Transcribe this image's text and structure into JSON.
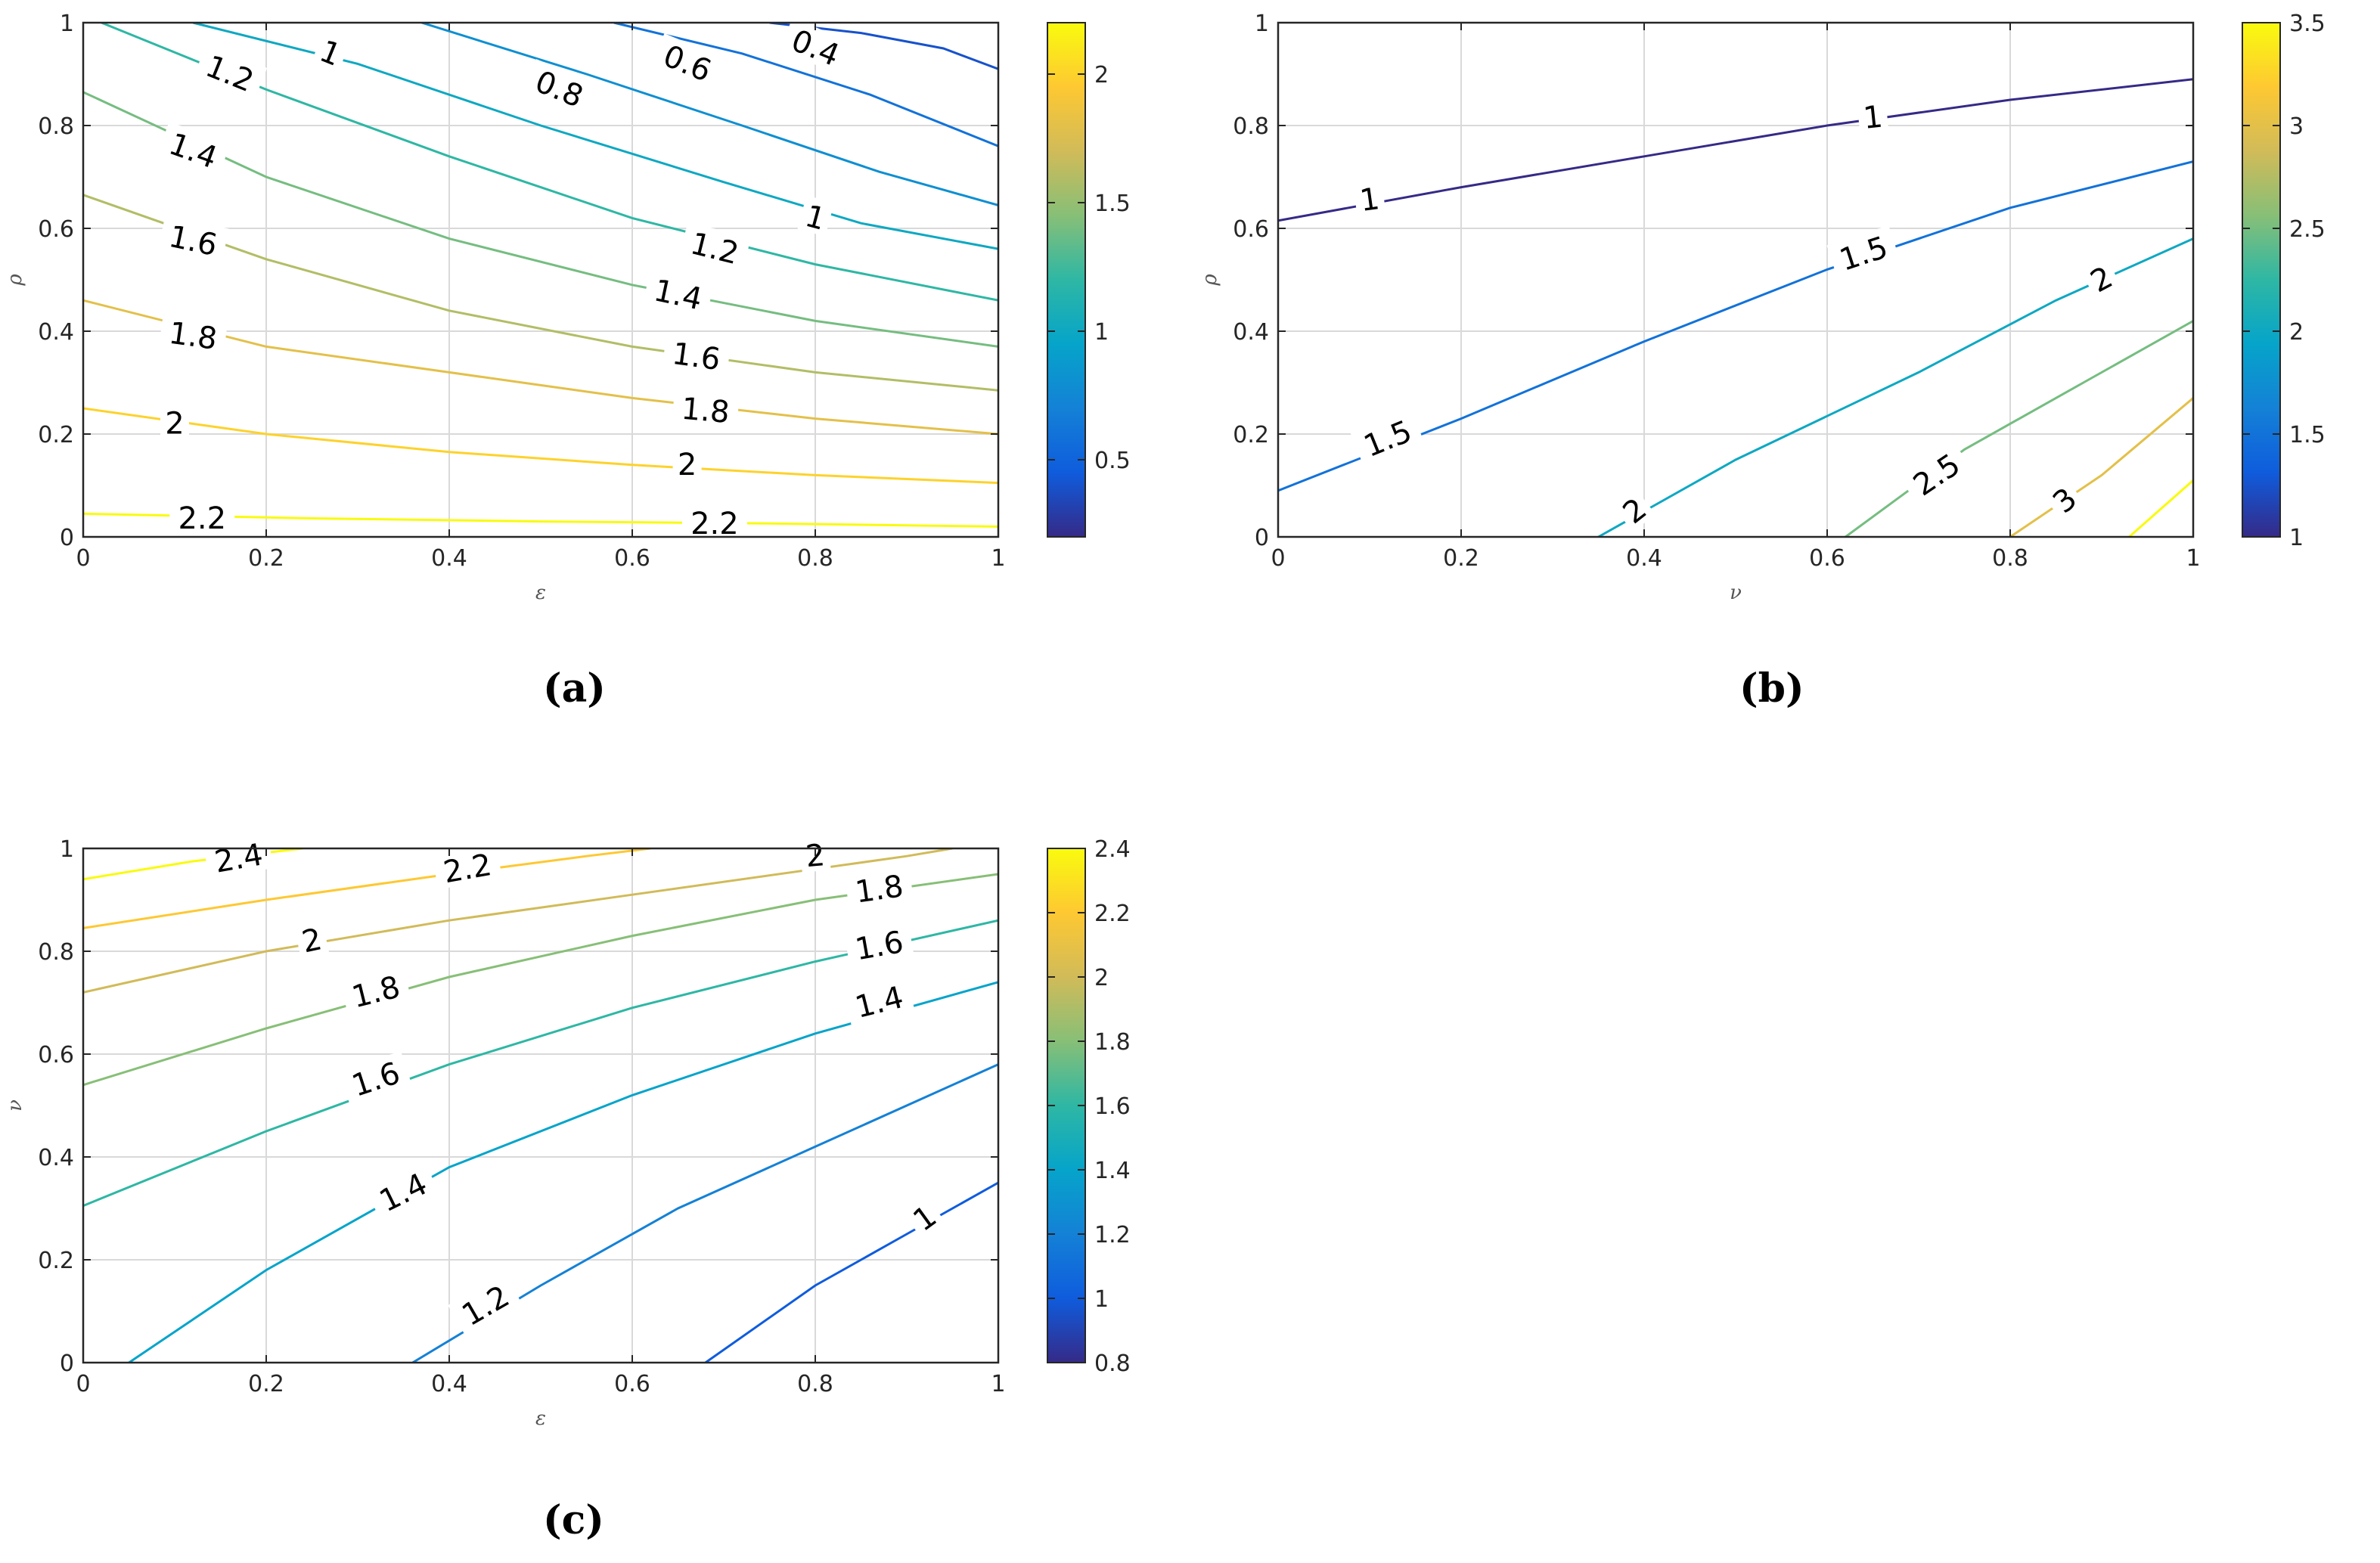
{
  "captions": {
    "a": "(a)",
    "b": "(b)",
    "c": "(c)"
  },
  "chart_data": [
    {
      "id": "a",
      "type": "contour",
      "title": "",
      "xlabel": "ε",
      "ylabel": "ρ",
      "xlim": [
        0,
        1
      ],
      "ylim": [
        0,
        1
      ],
      "xticks": [
        0,
        0.2,
        0.4,
        0.6,
        0.8,
        1
      ],
      "yticks": [
        0,
        0.2,
        0.4,
        0.6,
        0.8,
        1
      ],
      "grid": true,
      "colorbar": {
        "min": 0.2,
        "max": 2.2,
        "ticks": [
          0.5,
          1,
          1.5,
          2
        ]
      },
      "contours": [
        {
          "level": 2.2,
          "points": [
            [
              0,
              0.045
            ],
            [
              0.25,
              0.036
            ],
            [
              0.5,
              0.03
            ],
            [
              0.75,
              0.026
            ],
            [
              1,
              0.02
            ]
          ]
        },
        {
          "level": 2.0,
          "points": [
            [
              0,
              0.25
            ],
            [
              0.2,
              0.2
            ],
            [
              0.4,
              0.165
            ],
            [
              0.6,
              0.14
            ],
            [
              0.8,
              0.12
            ],
            [
              1,
              0.105
            ]
          ]
        },
        {
          "level": 1.8,
          "points": [
            [
              0,
              0.46
            ],
            [
              0.2,
              0.37
            ],
            [
              0.4,
              0.32
            ],
            [
              0.6,
              0.27
            ],
            [
              0.8,
              0.23
            ],
            [
              1,
              0.2
            ]
          ]
        },
        {
          "level": 1.6,
          "points": [
            [
              0,
              0.665
            ],
            [
              0.2,
              0.54
            ],
            [
              0.4,
              0.44
            ],
            [
              0.6,
              0.37
            ],
            [
              0.8,
              0.32
            ],
            [
              1,
              0.285
            ]
          ]
        },
        {
          "level": 1.4,
          "points": [
            [
              0,
              0.865
            ],
            [
              0.2,
              0.7
            ],
            [
              0.4,
              0.58
            ],
            [
              0.6,
              0.49
            ],
            [
              0.8,
              0.42
            ],
            [
              1,
              0.37
            ]
          ]
        },
        {
          "level": 1.2,
          "points": [
            [
              0.02,
              1
            ],
            [
              0.2,
              0.87
            ],
            [
              0.4,
              0.74
            ],
            [
              0.6,
              0.62
            ],
            [
              0.8,
              0.53
            ],
            [
              1,
              0.46
            ]
          ]
        },
        {
          "level": 1.0,
          "points": [
            [
              0.12,
              1
            ],
            [
              0.3,
              0.92
            ],
            [
              0.5,
              0.8
            ],
            [
              0.7,
              0.69
            ],
            [
              0.85,
              0.61
            ],
            [
              1,
              0.56
            ]
          ]
        },
        {
          "level": 0.8,
          "points": [
            [
              0.37,
              1
            ],
            [
              0.55,
              0.9
            ],
            [
              0.72,
              0.8
            ],
            [
              0.87,
              0.71
            ],
            [
              1,
              0.645
            ]
          ]
        },
        {
          "level": 0.6,
          "points": [
            [
              0.58,
              1
            ],
            [
              0.72,
              0.94
            ],
            [
              0.86,
              0.86
            ],
            [
              1,
              0.76
            ]
          ]
        },
        {
          "level": 0.4,
          "points": [
            [
              0.75,
              1
            ],
            [
              0.85,
              0.98
            ],
            [
              0.94,
              0.95
            ],
            [
              1,
              0.91
            ]
          ]
        }
      ],
      "labels": [
        {
          "text": "2.2",
          "x": 0.13,
          "y": 0.035,
          "angle": 0
        },
        {
          "text": "2.2",
          "x": 0.69,
          "y": 0.025,
          "angle": 0
        },
        {
          "text": "2",
          "x": 0.1,
          "y": 0.22,
          "angle": 0
        },
        {
          "text": "2",
          "x": 0.66,
          "y": 0.14,
          "angle": 0
        },
        {
          "text": "1.8",
          "x": 0.12,
          "y": 0.39,
          "angle": 8
        },
        {
          "text": "1.8",
          "x": 0.68,
          "y": 0.245,
          "angle": 5
        },
        {
          "text": "1.6",
          "x": 0.12,
          "y": 0.575,
          "angle": 12
        },
        {
          "text": "1.6",
          "x": 0.67,
          "y": 0.35,
          "angle": 8
        },
        {
          "text": "1.4",
          "x": 0.12,
          "y": 0.75,
          "angle": 20
        },
        {
          "text": "1.4",
          "x": 0.65,
          "y": 0.47,
          "angle": 12
        },
        {
          "text": "1.2",
          "x": 0.16,
          "y": 0.9,
          "angle": 22
        },
        {
          "text": "1.2",
          "x": 0.69,
          "y": 0.56,
          "angle": 14
        },
        {
          "text": "1",
          "x": 0.27,
          "y": 0.94,
          "angle": 22
        },
        {
          "text": "1",
          "x": 0.8,
          "y": 0.62,
          "angle": 15
        },
        {
          "text": "0.8",
          "x": 0.52,
          "y": 0.87,
          "angle": 22
        },
        {
          "text": "0.6",
          "x": 0.66,
          "y": 0.92,
          "angle": 22
        },
        {
          "text": "0.4",
          "x": 0.8,
          "y": 0.95,
          "angle": 22
        }
      ]
    },
    {
      "id": "b",
      "type": "contour",
      "title": "",
      "xlabel": "ν",
      "ylabel": "ρ",
      "xlim": [
        0,
        1
      ],
      "ylim": [
        0,
        1
      ],
      "xticks": [
        0,
        0.2,
        0.4,
        0.6,
        0.8,
        1
      ],
      "yticks": [
        0,
        0.2,
        0.4,
        0.6,
        0.8,
        1
      ],
      "grid": true,
      "colorbar": {
        "min": 1,
        "max": 3.5,
        "ticks": [
          1,
          1.5,
          2,
          2.5,
          3,
          3.5
        ]
      },
      "contours": [
        {
          "level": 1.0,
          "points": [
            [
              0,
              0.615
            ],
            [
              0.2,
              0.68
            ],
            [
              0.4,
              0.74
            ],
            [
              0.6,
              0.8
            ],
            [
              0.8,
              0.85
            ],
            [
              1,
              0.89
            ]
          ]
        },
        {
          "level": 1.5,
          "points": [
            [
              0,
              0.09
            ],
            [
              0.2,
              0.23
            ],
            [
              0.4,
              0.38
            ],
            [
              0.6,
              0.52
            ],
            [
              0.8,
              0.64
            ],
            [
              1,
              0.73
            ]
          ]
        },
        {
          "level": 2.0,
          "points": [
            [
              0.35,
              0
            ],
            [
              0.5,
              0.15
            ],
            [
              0.7,
              0.32
            ],
            [
              0.85,
              0.46
            ],
            [
              1,
              0.58
            ]
          ]
        },
        {
          "level": 2.5,
          "points": [
            [
              0.62,
              0
            ],
            [
              0.75,
              0.17
            ],
            [
              0.88,
              0.3
            ],
            [
              1,
              0.42
            ]
          ]
        },
        {
          "level": 3.0,
          "points": [
            [
              0.8,
              0
            ],
            [
              0.9,
              0.12
            ],
            [
              1,
              0.27
            ]
          ]
        },
        {
          "level": 3.5,
          "points": [
            [
              0.93,
              0
            ],
            [
              1,
              0.11
            ]
          ]
        }
      ],
      "labels": [
        {
          "text": "1",
          "x": 0.1,
          "y": 0.655,
          "angle": -8
        },
        {
          "text": "1",
          "x": 0.65,
          "y": 0.815,
          "angle": -6
        },
        {
          "text": "1.5",
          "x": 0.12,
          "y": 0.19,
          "angle": -22
        },
        {
          "text": "1.5",
          "x": 0.64,
          "y": 0.55,
          "angle": -18
        },
        {
          "text": "2",
          "x": 0.39,
          "y": 0.05,
          "angle": -38
        },
        {
          "text": "2",
          "x": 0.9,
          "y": 0.5,
          "angle": -28
        },
        {
          "text": "2.5",
          "x": 0.72,
          "y": 0.12,
          "angle": -34
        },
        {
          "text": "3",
          "x": 0.86,
          "y": 0.07,
          "angle": -40
        }
      ]
    },
    {
      "id": "c",
      "type": "contour",
      "title": "",
      "xlabel": "ε",
      "ylabel": "ν",
      "xlim": [
        0,
        1
      ],
      "ylim": [
        0,
        1
      ],
      "xticks": [
        0,
        0.2,
        0.4,
        0.6,
        0.8,
        1
      ],
      "yticks": [
        0,
        0.2,
        0.4,
        0.6,
        0.8,
        1
      ],
      "grid": true,
      "colorbar": {
        "min": 0.8,
        "max": 2.4,
        "ticks": [
          0.8,
          1,
          1.2,
          1.4,
          1.6,
          1.8,
          2,
          2.2,
          2.4
        ]
      },
      "contours": [
        {
          "level": 2.4,
          "points": [
            [
              0,
              0.94
            ],
            [
              0.12,
              0.975
            ],
            [
              0.24,
              1
            ]
          ]
        },
        {
          "level": 2.2,
          "points": [
            [
              0,
              0.845
            ],
            [
              0.2,
              0.9
            ],
            [
              0.4,
              0.95
            ],
            [
              0.55,
              0.985
            ],
            [
              0.62,
              1
            ]
          ]
        },
        {
          "level": 2.0,
          "points": [
            [
              0,
              0.72
            ],
            [
              0.2,
              0.8
            ],
            [
              0.4,
              0.86
            ],
            [
              0.6,
              0.91
            ],
            [
              0.8,
              0.96
            ],
            [
              0.9,
              0.985
            ],
            [
              0.95,
              1
            ]
          ]
        },
        {
          "level": 1.8,
          "points": [
            [
              0,
              0.54
            ],
            [
              0.2,
              0.65
            ],
            [
              0.4,
              0.75
            ],
            [
              0.6,
              0.83
            ],
            [
              0.8,
              0.9
            ],
            [
              1,
              0.95
            ]
          ]
        },
        {
          "level": 1.6,
          "points": [
            [
              0,
              0.305
            ],
            [
              0.2,
              0.45
            ],
            [
              0.4,
              0.58
            ],
            [
              0.6,
              0.69
            ],
            [
              0.8,
              0.78
            ],
            [
              1,
              0.86
            ]
          ]
        },
        {
          "level": 1.4,
          "points": [
            [
              0.05,
              0
            ],
            [
              0.2,
              0.18
            ],
            [
              0.4,
              0.38
            ],
            [
              0.6,
              0.52
            ],
            [
              0.8,
              0.64
            ],
            [
              1,
              0.74
            ]
          ]
        },
        {
          "level": 1.2,
          "points": [
            [
              0.36,
              0
            ],
            [
              0.5,
              0.15
            ],
            [
              0.65,
              0.3
            ],
            [
              0.8,
              0.42
            ],
            [
              1,
              0.58
            ]
          ]
        },
        {
          "level": 1.0,
          "points": [
            [
              0.68,
              0
            ],
            [
              0.8,
              0.15
            ],
            [
              0.9,
              0.25
            ],
            [
              1,
              0.35
            ]
          ]
        }
      ],
      "labels": [
        {
          "text": "2.4",
          "x": 0.17,
          "y": 0.98,
          "angle": -10
        },
        {
          "text": "2.2",
          "x": 0.42,
          "y": 0.96,
          "angle": -10
        },
        {
          "text": "2",
          "x": 0.8,
          "y": 0.985,
          "angle": -5
        },
        {
          "text": "2",
          "x": 0.25,
          "y": 0.82,
          "angle": -12
        },
        {
          "text": "1.8",
          "x": 0.32,
          "y": 0.72,
          "angle": -14
        },
        {
          "text": "1.8",
          "x": 0.87,
          "y": 0.92,
          "angle": -8
        },
        {
          "text": "1.6",
          "x": 0.32,
          "y": 0.55,
          "angle": -18
        },
        {
          "text": "1.6",
          "x": 0.87,
          "y": 0.81,
          "angle": -10
        },
        {
          "text": "1.4",
          "x": 0.35,
          "y": 0.33,
          "angle": -26
        },
        {
          "text": "1.4",
          "x": 0.87,
          "y": 0.7,
          "angle": -14
        },
        {
          "text": "1.2",
          "x": 0.44,
          "y": 0.11,
          "angle": -30
        },
        {
          "text": "1",
          "x": 0.92,
          "y": 0.28,
          "angle": -36
        }
      ]
    }
  ]
}
